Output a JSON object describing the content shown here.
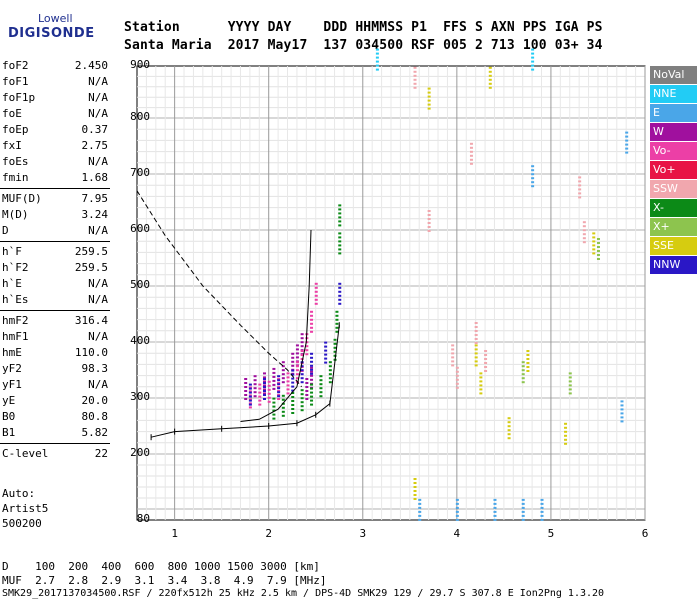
{
  "logo": {
    "top": "Lowell",
    "main": "DIGISONDE"
  },
  "header": {
    "line1": "Station      YYYY DAY    DDD HHMMSS P1  FFS S AXN PPS IGA PS",
    "line2": "Santa Maria  2017 May17  137 034500 RSF 005 2 713 100 03+ 34"
  },
  "params": [
    {
      "name": "foF2",
      "value": "2.450"
    },
    {
      "name": "foF1",
      "value": "N/A"
    },
    {
      "name": "foF1p",
      "value": "N/A"
    },
    {
      "name": "foE",
      "value": "N/A"
    },
    {
      "name": "foEp",
      "value": "0.37"
    },
    {
      "name": "fxI",
      "value": "2.75"
    },
    {
      "name": "foEs",
      "value": "N/A"
    },
    {
      "name": "fmin",
      "value": "1.68"
    },
    {
      "name": "MUF(D)",
      "value": "7.95"
    },
    {
      "name": "M(D)",
      "value": "3.24"
    },
    {
      "name": "D",
      "value": "N/A"
    },
    {
      "name": "h`F",
      "value": "259.5"
    },
    {
      "name": "h`F2",
      "value": "259.5"
    },
    {
      "name": "h`E",
      "value": "N/A"
    },
    {
      "name": "h`Es",
      "value": "N/A"
    },
    {
      "name": "hmF2",
      "value": "316.4"
    },
    {
      "name": "hmF1",
      "value": "N/A"
    },
    {
      "name": "hmE",
      "value": "110.0"
    },
    {
      "name": "yF2",
      "value": "98.3"
    },
    {
      "name": "yF1",
      "value": "N/A"
    },
    {
      "name": "yE",
      "value": "20.0"
    },
    {
      "name": "B0",
      "value": "80.8"
    },
    {
      "name": "B1",
      "value": "5.82"
    },
    {
      "name": "C-level",
      "value": "22"
    }
  ],
  "auto": {
    "line1": "Auto:",
    "line2": "Artist5",
    "line3": "500200"
  },
  "legend": [
    {
      "label": "NoVal",
      "color": "#7f7f7f"
    },
    {
      "label": "NNE",
      "color": "#22ccf5"
    },
    {
      "label": "E",
      "color": "#4aa6e8"
    },
    {
      "label": "W",
      "color": "#a0109e"
    },
    {
      "label": "Vo-",
      "color": "#ec3fa6"
    },
    {
      "label": "Vo+",
      "color": "#e81445"
    },
    {
      "label": "SSW",
      "color": "#f1a7ae"
    },
    {
      "label": "X-",
      "color": "#0c8a17"
    },
    {
      "label": "X+",
      "color": "#8dc44e"
    },
    {
      "label": "SSE",
      "color": "#d6cc10"
    },
    {
      "label": "NNW",
      "color": "#2a17c6"
    }
  ],
  "footer": {
    "d_row": "D    100  200  400  600  800 1000 1500 3000 [km]",
    "muf_row": "MUF  2.7  2.8  2.9  3.1  3.4  3.8  4.9  7.9 [MHz]",
    "info": "SMK29_2017137034500.RSF / 220fx512h 25 kHz 2.5 km / DPS-4D SMK29 129 / 29.7 S 307.8 E Ion2Png 1.3.20"
  },
  "chart_data": {
    "type": "scatter",
    "x_ticks": [
      "1",
      "2",
      "3",
      "4",
      "5",
      "6"
    ],
    "y_ticks": [
      "80",
      "200",
      "300",
      "400",
      "500",
      "600",
      "700",
      "800",
      "900"
    ],
    "xlim": [
      0.6,
      6.0
    ],
    "ylim": [
      80,
      900
    ],
    "grid": true,
    "series": [
      {
        "name": "W",
        "points": [
          [
            1.75,
            300
          ],
          [
            1.85,
            305
          ],
          [
            1.95,
            310
          ],
          [
            2.05,
            318
          ],
          [
            2.15,
            330
          ],
          [
            2.25,
            345
          ],
          [
            2.3,
            360
          ],
          [
            2.35,
            380
          ],
          [
            2.4,
            300
          ],
          [
            2.45,
            320
          ]
        ]
      },
      {
        "name": "Vo-",
        "points": [
          [
            1.8,
            285
          ],
          [
            1.9,
            290
          ],
          [
            2.0,
            295
          ],
          [
            2.1,
            300
          ],
          [
            2.2,
            310
          ],
          [
            2.3,
            330
          ],
          [
            2.35,
            350
          ],
          [
            2.4,
            380
          ],
          [
            2.45,
            420
          ],
          [
            2.5,
            470
          ]
        ]
      },
      {
        "name": "X-",
        "points": [
          [
            2.05,
            265
          ],
          [
            2.15,
            270
          ],
          [
            2.25,
            275
          ],
          [
            2.35,
            280
          ],
          [
            2.45,
            290
          ],
          [
            2.55,
            305
          ],
          [
            2.65,
            330
          ],
          [
            2.7,
            370
          ],
          [
            2.72,
            420
          ],
          [
            2.75,
            560
          ],
          [
            2.75,
            610
          ]
        ]
      },
      {
        "name": "NNW",
        "points": [
          [
            1.8,
            290
          ],
          [
            1.95,
            300
          ],
          [
            2.1,
            305
          ],
          [
            2.25,
            315
          ],
          [
            2.35,
            330
          ],
          [
            2.45,
            345
          ],
          [
            2.6,
            365
          ],
          [
            2.75,
            470
          ]
        ]
      },
      {
        "name": "SSW",
        "points": [
          [
            3.55,
            860
          ],
          [
            3.7,
            600
          ],
          [
            4.15,
            720
          ],
          [
            4.2,
            400
          ],
          [
            4.3,
            350
          ],
          [
            5.3,
            660
          ],
          [
            5.35,
            580
          ],
          [
            3.95,
            360
          ],
          [
            4.0,
            320
          ]
        ]
      },
      {
        "name": "E",
        "points": [
          [
            4.8,
            680
          ],
          [
            5.8,
            740
          ],
          [
            5.75,
            260
          ],
          [
            3.6,
            82
          ],
          [
            4.0,
            82
          ],
          [
            4.4,
            82
          ],
          [
            4.7,
            82
          ],
          [
            4.9,
            82
          ]
        ]
      },
      {
        "name": "SSE",
        "points": [
          [
            3.55,
            120
          ],
          [
            3.7,
            820
          ],
          [
            4.35,
            860
          ],
          [
            4.2,
            360
          ],
          [
            4.25,
            310
          ],
          [
            4.55,
            230
          ],
          [
            4.75,
            350
          ],
          [
            5.15,
            220
          ],
          [
            5.45,
            560
          ]
        ]
      },
      {
        "name": "X+",
        "points": [
          [
            4.7,
            330
          ],
          [
            5.2,
            310
          ],
          [
            5.5,
            550
          ]
        ]
      },
      {
        "name": "NNE",
        "points": [
          [
            3.15,
            895
          ],
          [
            4.8,
            895
          ]
        ]
      }
    ],
    "trace_fitted": [
      [
        2.45,
        600
      ],
      [
        2.43,
        500
      ],
      [
        2.4,
        400
      ],
      [
        2.3,
        320
      ],
      [
        2.1,
        280
      ],
      [
        1.9,
        262
      ],
      [
        1.7,
        258
      ]
    ],
    "trace_true": [
      [
        0.75,
        230
      ],
      [
        1.0,
        240
      ],
      [
        1.5,
        245
      ],
      [
        2.0,
        250
      ],
      [
        2.3,
        255
      ],
      [
        2.5,
        270
      ],
      [
        2.65,
        290
      ],
      [
        2.75,
        430
      ]
    ],
    "trace_dashed": [
      [
        0.6,
        670
      ],
      [
        0.9,
        590
      ],
      [
        1.3,
        500
      ],
      [
        1.7,
        430
      ],
      [
        2.0,
        380
      ],
      [
        2.2,
        350
      ],
      [
        2.35,
        320
      ]
    ]
  }
}
